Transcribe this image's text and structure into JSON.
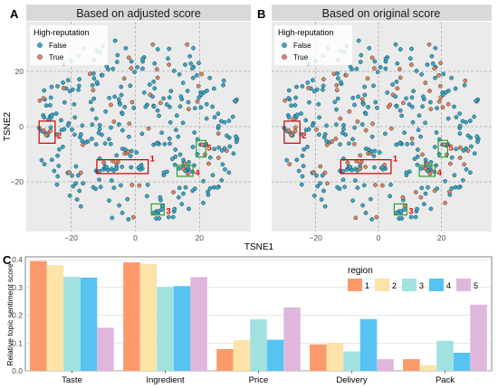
{
  "panels": [
    {
      "letter": "A",
      "title": "Based on adjusted score"
    },
    {
      "letter": "B",
      "title": "Based on original score"
    },
    {
      "letter": "C",
      "title": ""
    }
  ],
  "scatter_x_label": "TSNE1",
  "scatter_y_label": "TSNE2",
  "scatter_legend_title": "High-reputation",
  "scatter_legend_items": [
    "False",
    "True"
  ],
  "bar_y_label": "Relative topic sentiment score",
  "bar_legend_title": "region",
  "colors": {
    "false_point": "#3aa7c8",
    "true_point": "#e8825a",
    "region_box": "#cc0000",
    "region_box_green": "#2e9e2e",
    "panel_bg": "#ebebeb",
    "strip_bg": "#d9d9d9",
    "region_colors": [
      "#fc9a6c",
      "#fde3a7",
      "#a1e2e0",
      "#56c3f3",
      "#e0b7dc"
    ]
  },
  "chart_data": [
    {
      "type": "scatter",
      "panel": "A",
      "title": "Based on adjusted score",
      "xlabel": "TSNE1",
      "ylabel": "TSNE2",
      "xlim": [
        -34,
        36
      ],
      "ylim": [
        -38,
        38
      ],
      "xticks": [
        -20,
        0,
        20
      ],
      "yticks": [
        -20,
        0,
        20
      ],
      "xtick_labels": [
        "−20",
        "0",
        "20"
      ],
      "ytick_labels": [
        "−20",
        "0",
        "20"
      ],
      "grid": true,
      "legend_position": "top-left",
      "series_names": [
        "False",
        "True"
      ],
      "region_boxes": [
        {
          "label": "1",
          "x": [
            -12,
            4
          ],
          "y": [
            -17,
            -12
          ]
        },
        {
          "label": "2",
          "x": [
            -30,
            -25
          ],
          "y": [
            -6,
            2
          ]
        },
        {
          "label": "3",
          "x": [
            5,
            9
          ],
          "y": [
            -32,
            -28
          ]
        },
        {
          "label": "4",
          "x": [
            13,
            18
          ],
          "y": [
            -18,
            -14
          ]
        },
        {
          "label": "5",
          "x": [
            19,
            22
          ],
          "y": [
            -11,
            -5
          ]
        }
      ]
    },
    {
      "type": "scatter",
      "panel": "B",
      "title": "Based on original score",
      "xlabel": "TSNE1",
      "ylabel": "TSNE2",
      "xlim": [
        -34,
        36
      ],
      "ylim": [
        -38,
        38
      ],
      "xticks": [
        -20,
        0,
        20
      ],
      "yticks": [
        -20,
        0,
        20
      ],
      "xtick_labels": [
        "−20",
        "0",
        "20"
      ],
      "ytick_labels": [
        "−20",
        "0",
        "20"
      ],
      "grid": true,
      "legend_position": "top-left",
      "series_names": [
        "False",
        "True"
      ],
      "region_boxes": [
        {
          "label": "1",
          "x": [
            -12,
            4
          ],
          "y": [
            -17,
            -12
          ]
        },
        {
          "label": "2",
          "x": [
            -30,
            -25
          ],
          "y": [
            -6,
            2
          ]
        },
        {
          "label": "3",
          "x": [
            5,
            9
          ],
          "y": [
            -32,
            -28
          ]
        },
        {
          "label": "4",
          "x": [
            13,
            18
          ],
          "y": [
            -18,
            -14
          ]
        },
        {
          "label": "5",
          "x": [
            19,
            22
          ],
          "y": [
            -11,
            -5
          ]
        }
      ]
    },
    {
      "type": "bar",
      "panel": "C",
      "categories": [
        "Taste",
        "Ingredient",
        "Price",
        "Delivery",
        "Pack"
      ],
      "ylabel": "Relative topic sentiment score",
      "ylim": [
        0,
        0.41
      ],
      "yticks": [
        0.0,
        0.1,
        0.2,
        0.3,
        0.4
      ],
      "ytick_labels": [
        "0.0",
        "0.1",
        "0.2",
        "0.3",
        "0.4"
      ],
      "grid": true,
      "legend_title": "region",
      "legend_position": "top-right",
      "series": [
        {
          "name": "1",
          "values": [
            0.395,
            0.39,
            0.078,
            0.095,
            0.042
          ]
        },
        {
          "name": "2",
          "values": [
            0.38,
            0.385,
            0.11,
            0.1,
            0.02
          ]
        },
        {
          "name": "3",
          "values": [
            0.338,
            0.302,
            0.185,
            0.07,
            0.108
          ]
        },
        {
          "name": "4",
          "values": [
            0.335,
            0.305,
            0.112,
            0.186,
            0.065
          ]
        },
        {
          "name": "5",
          "values": [
            0.155,
            0.337,
            0.228,
            0.042,
            0.238
          ]
        }
      ]
    }
  ]
}
